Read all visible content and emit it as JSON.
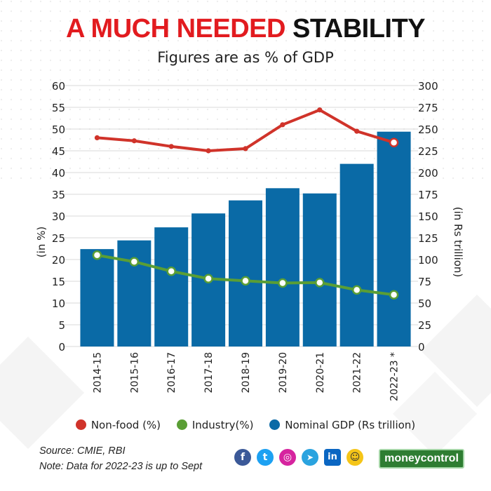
{
  "title": {
    "part1": "A MUCH NEEDED",
    "part2": "STABILITY",
    "red_color": "#e21b1f"
  },
  "subtitle": "Figures are as % of GDP",
  "legend": {
    "nonfood": {
      "label": "Non-food (%)",
      "color": "#d0332a"
    },
    "industry": {
      "label": "Industry(%)",
      "color": "#5a9e35"
    },
    "gdp": {
      "label": "Nominal GDP (Rs trillion)",
      "color": "#0a6aa6"
    }
  },
  "source": {
    "line1": "Source: CMIE, RBI",
    "line2": "Note: Data for 2022-23 is up to Sept"
  },
  "social": {
    "facebook": "f",
    "twitter": "t",
    "instagram": "◎",
    "telegram": "➤",
    "linkedin": "in",
    "koo": "☺"
  },
  "brand": "moneycontrol",
  "chart_data": {
    "type": "bar",
    "title": "A MUCH NEEDED STABILITY",
    "subtitle": "Figures are as % of GDP",
    "categories": [
      "2014-15",
      "2015-16",
      "2016-17",
      "2017-18",
      "2018-19",
      "2019-20",
      "2020-21",
      "2021-22",
      "2022-23 *"
    ],
    "series": [
      {
        "name": "Nominal GDP (Rs trillion)",
        "type": "bar",
        "axis": "right",
        "values": [
          112,
          122,
          137,
          153,
          168,
          182,
          176,
          210,
          247
        ]
      },
      {
        "name": "Non-food (%)",
        "type": "line",
        "axis": "left",
        "values": [
          48.0,
          47.3,
          46.0,
          45.0,
          45.5,
          51.0,
          54.4,
          49.5,
          46.9
        ]
      },
      {
        "name": "Industry(%)",
        "type": "line",
        "axis": "left",
        "values": [
          21.0,
          19.5,
          17.3,
          15.6,
          15.1,
          14.6,
          14.7,
          13.0,
          11.9
        ]
      }
    ],
    "ylabel": "(in %)",
    "y2label": "(in Rs trillion)",
    "ylim": [
      0,
      60
    ],
    "y2lim": [
      0,
      300
    ],
    "yticks": [
      0,
      5,
      10,
      15,
      20,
      25,
      30,
      35,
      40,
      45,
      50,
      55,
      60
    ],
    "y2ticks": [
      0,
      25,
      50,
      75,
      100,
      125,
      150,
      175,
      200,
      225,
      250,
      275,
      300
    ],
    "grid": true
  }
}
